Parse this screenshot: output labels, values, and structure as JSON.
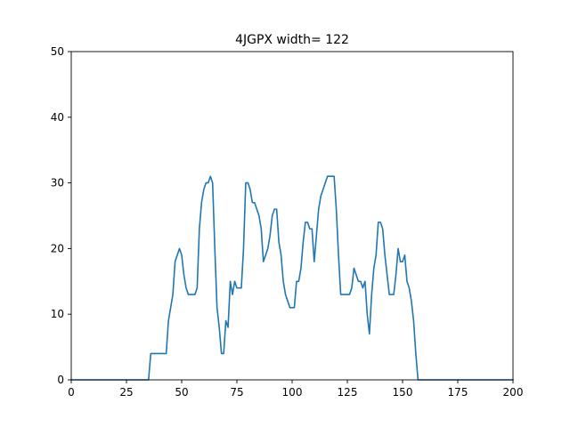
{
  "chart_data": {
    "type": "line",
    "title": "4JGPX width= 122",
    "xlabel": "",
    "ylabel": "",
    "xlim": [
      0,
      200
    ],
    "ylim": [
      0,
      50
    ],
    "xticks": [
      0,
      25,
      50,
      75,
      100,
      125,
      150,
      175,
      200
    ],
    "yticks": [
      0,
      10,
      20,
      30,
      40,
      50
    ],
    "grid": false,
    "series": [
      {
        "color": "#1f77b4",
        "points": [
          [
            0,
            0
          ],
          [
            35,
            0
          ],
          [
            36,
            4
          ],
          [
            43,
            4
          ],
          [
            44,
            9
          ],
          [
            46,
            13
          ],
          [
            47,
            18
          ],
          [
            48,
            19
          ],
          [
            49,
            20
          ],
          [
            50,
            19
          ],
          [
            51,
            16
          ],
          [
            52,
            14
          ],
          [
            53,
            13
          ],
          [
            56,
            13
          ],
          [
            57,
            14
          ],
          [
            58,
            23
          ],
          [
            59,
            27
          ],
          [
            60,
            29
          ],
          [
            61,
            30
          ],
          [
            62,
            30
          ],
          [
            63,
            31
          ],
          [
            64,
            30
          ],
          [
            65,
            20
          ],
          [
            66,
            11
          ],
          [
            67,
            8
          ],
          [
            68,
            4
          ],
          [
            69,
            4
          ],
          [
            70,
            9
          ],
          [
            71,
            8
          ],
          [
            72,
            15
          ],
          [
            73,
            13
          ],
          [
            74,
            15
          ],
          [
            75,
            14
          ],
          [
            77,
            14
          ],
          [
            78,
            20
          ],
          [
            79,
            30
          ],
          [
            80,
            30
          ],
          [
            81,
            29
          ],
          [
            82,
            27
          ],
          [
            83,
            27
          ],
          [
            84,
            26
          ],
          [
            85,
            25
          ],
          [
            86,
            23
          ],
          [
            87,
            18
          ],
          [
            88,
            19
          ],
          [
            89,
            20
          ],
          [
            90,
            22
          ],
          [
            91,
            25
          ],
          [
            92,
            26
          ],
          [
            93,
            26
          ],
          [
            94,
            21
          ],
          [
            95,
            19
          ],
          [
            96,
            15
          ],
          [
            97,
            13
          ],
          [
            98,
            12
          ],
          [
            99,
            11
          ],
          [
            101,
            11
          ],
          [
            102,
            15
          ],
          [
            103,
            15
          ],
          [
            104,
            17
          ],
          [
            105,
            21
          ],
          [
            106,
            24
          ],
          [
            107,
            24
          ],
          [
            108,
            23
          ],
          [
            109,
            23
          ],
          [
            110,
            18
          ],
          [
            111,
            22
          ],
          [
            112,
            26
          ],
          [
            113,
            28
          ],
          [
            114,
            29
          ],
          [
            115,
            30
          ],
          [
            116,
            31
          ],
          [
            119,
            31
          ],
          [
            120,
            26
          ],
          [
            121,
            19
          ],
          [
            122,
            13
          ],
          [
            126,
            13
          ],
          [
            127,
            14
          ],
          [
            128,
            17
          ],
          [
            129,
            16
          ],
          [
            130,
            15
          ],
          [
            131,
            15
          ],
          [
            132,
            14
          ],
          [
            133,
            15
          ],
          [
            134,
            10
          ],
          [
            135,
            7
          ],
          [
            136,
            13
          ],
          [
            137,
            17
          ],
          [
            138,
            19
          ],
          [
            139,
            24
          ],
          [
            140,
            24
          ],
          [
            141,
            23
          ],
          [
            142,
            19
          ],
          [
            143,
            16
          ],
          [
            144,
            13
          ],
          [
            146,
            13
          ],
          [
            147,
            16
          ],
          [
            148,
            20
          ],
          [
            149,
            18
          ],
          [
            150,
            18
          ],
          [
            151,
            19
          ],
          [
            152,
            15
          ],
          [
            153,
            14
          ],
          [
            154,
            12
          ],
          [
            155,
            9
          ],
          [
            156,
            4
          ],
          [
            157,
            0
          ],
          [
            200,
            0
          ]
        ]
      }
    ]
  }
}
